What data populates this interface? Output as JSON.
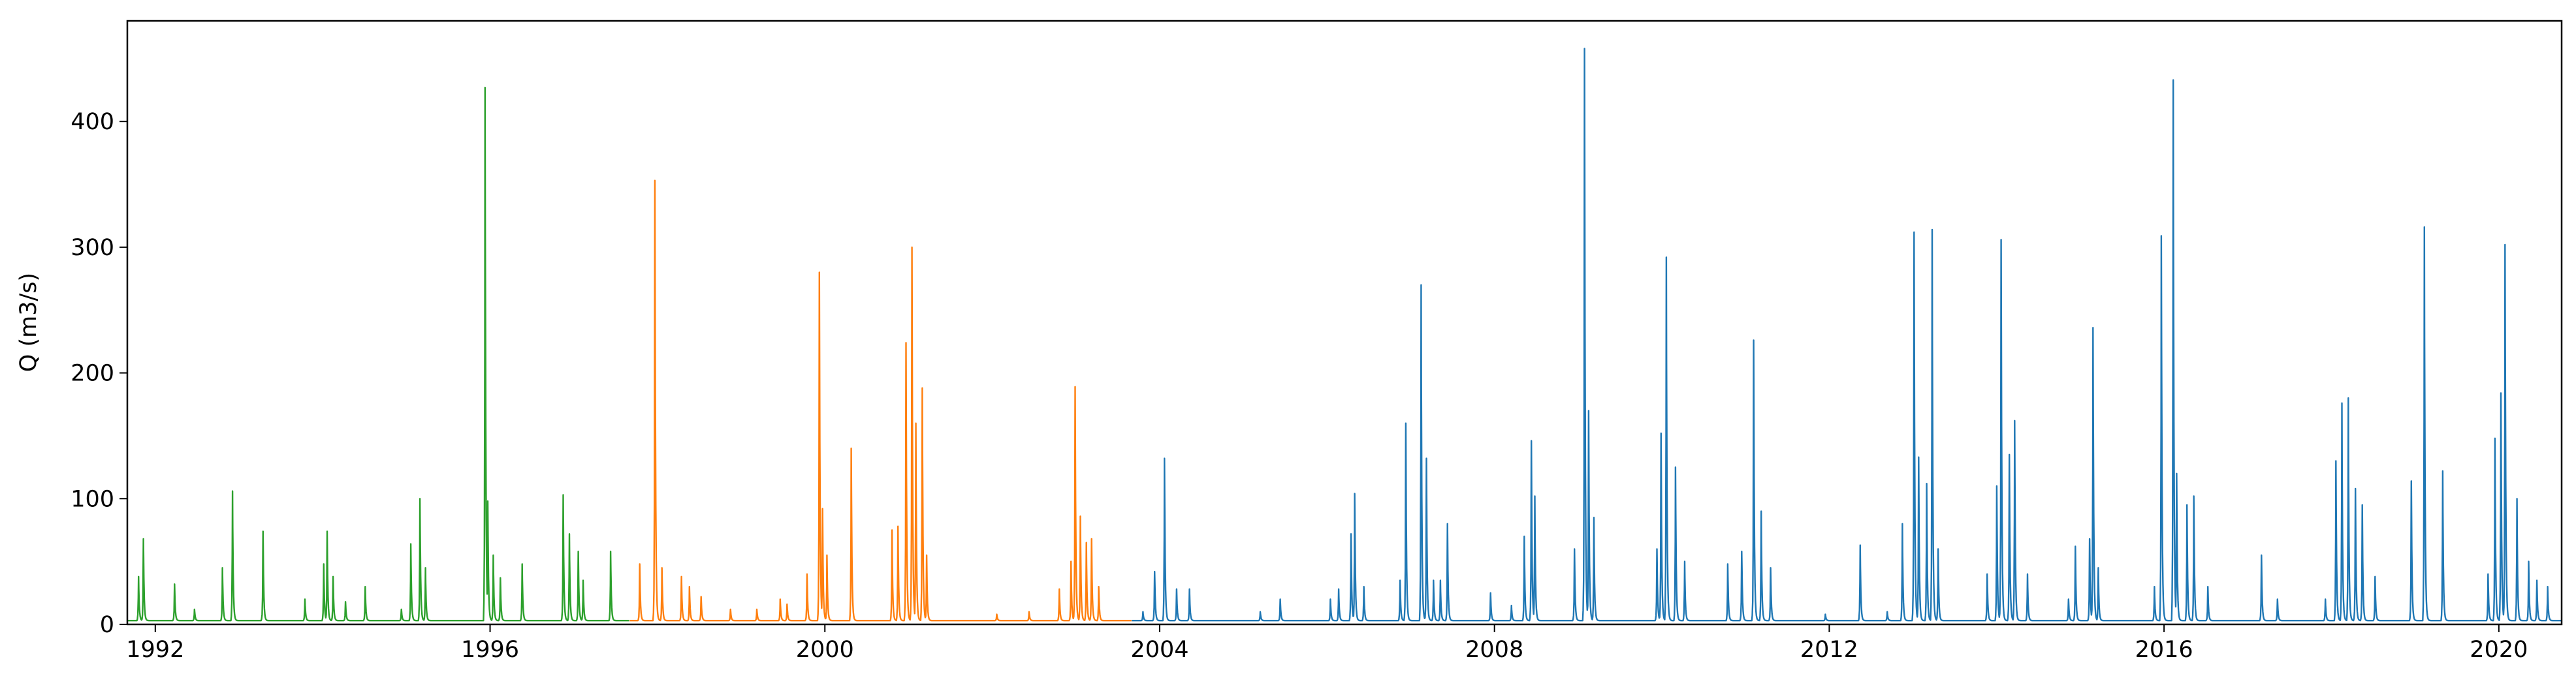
{
  "chart_data": {
    "type": "line",
    "title": "",
    "xlabel": "",
    "ylabel": "Q (m3/s)",
    "x_range": [
      "1991-09-01",
      "2020-10-01"
    ],
    "ylim": [
      0,
      480
    ],
    "x_ticks": [
      "1992",
      "1996",
      "2000",
      "2004",
      "2008",
      "2012",
      "2016",
      "2020"
    ],
    "y_ticks": [
      "0",
      "100",
      "200",
      "300",
      "400"
    ],
    "grid": false,
    "legend": "none",
    "series": [
      {
        "color": "#2ca02c",
        "period": [
          "1991-09-01",
          "1997-08-31"
        ],
        "base_flow": 3,
        "peaks": [
          [
            "1991-10-20",
            38
          ],
          [
            "1991-11-10",
            68
          ],
          [
            "1992-03-25",
            32
          ],
          [
            "1992-06-20",
            12
          ],
          [
            "1992-10-20",
            45
          ],
          [
            "1992-12-03",
            106
          ],
          [
            "1993-04-15",
            74
          ],
          [
            "1993-10-15",
            20
          ],
          [
            "1994-01-05",
            48
          ],
          [
            "1994-01-20",
            74
          ],
          [
            "1994-02-15",
            38
          ],
          [
            "1994-04-10",
            18
          ],
          [
            "1994-07-05",
            30
          ],
          [
            "1994-12-10",
            12
          ],
          [
            "1995-01-20",
            64
          ],
          [
            "1995-03-01",
            100
          ],
          [
            "1995-03-25",
            45
          ],
          [
            "1995-12-10",
            427
          ],
          [
            "1995-12-22",
            98
          ],
          [
            "1996-01-15",
            55
          ],
          [
            "1996-02-15",
            37
          ],
          [
            "1996-05-20",
            48
          ],
          [
            "1996-11-15",
            103
          ],
          [
            "1996-12-12",
            72
          ],
          [
            "1997-01-20",
            58
          ],
          [
            "1997-02-10",
            35
          ],
          [
            "1997-06-10",
            58
          ]
        ]
      },
      {
        "color": "#ff7f0e",
        "period": [
          "1997-09-01",
          "2003-08-31"
        ],
        "base_flow": 3,
        "peaks": [
          [
            "1997-10-15",
            48
          ],
          [
            "1997-12-20",
            353
          ],
          [
            "1998-01-20",
            45
          ],
          [
            "1998-04-15",
            38
          ],
          [
            "1998-05-20",
            30
          ],
          [
            "1998-07-10",
            22
          ],
          [
            "1998-11-15",
            12
          ],
          [
            "1999-03-10",
            12
          ],
          [
            "1999-06-20",
            20
          ],
          [
            "1999-07-20",
            16
          ],
          [
            "1999-10-15",
            40
          ],
          [
            "1999-12-08",
            280
          ],
          [
            "1999-12-22",
            92
          ],
          [
            "2000-01-10",
            55
          ],
          [
            "2000-04-25",
            140
          ],
          [
            "2000-10-20",
            75
          ],
          [
            "2000-11-15",
            78
          ],
          [
            "2000-12-20",
            224
          ],
          [
            "2001-01-15",
            300
          ],
          [
            "2001-02-01",
            160
          ],
          [
            "2001-03-01",
            188
          ],
          [
            "2001-03-20",
            55
          ],
          [
            "2002-01-20",
            8
          ],
          [
            "2002-06-10",
            10
          ],
          [
            "2002-10-20",
            28
          ],
          [
            "2002-12-10",
            50
          ],
          [
            "2002-12-28",
            189
          ],
          [
            "2003-01-20",
            86
          ],
          [
            "2003-02-15",
            65
          ],
          [
            "2003-03-10",
            68
          ],
          [
            "2003-04-10",
            30
          ]
        ]
      },
      {
        "color": "#1f77b4",
        "period": [
          "2003-09-01",
          "2020-10-01"
        ],
        "base_flow": 3,
        "peaks": [
          [
            "2003-10-20",
            10
          ],
          [
            "2003-12-10",
            42
          ],
          [
            "2004-01-22",
            132
          ],
          [
            "2004-03-15",
            28
          ],
          [
            "2004-05-10",
            28
          ],
          [
            "2005-03-15",
            10
          ],
          [
            "2005-06-10",
            20
          ],
          [
            "2006-01-15",
            20
          ],
          [
            "2006-02-20",
            28
          ],
          [
            "2006-04-15",
            72
          ],
          [
            "2006-05-01",
            104
          ],
          [
            "2006-06-10",
            30
          ],
          [
            "2006-11-15",
            35
          ],
          [
            "2006-12-10",
            160
          ],
          [
            "2007-02-15",
            270
          ],
          [
            "2007-03-10",
            132
          ],
          [
            "2007-04-10",
            35
          ],
          [
            "2007-05-10",
            35
          ],
          [
            "2007-06-10",
            80
          ],
          [
            "2007-12-15",
            25
          ],
          [
            "2008-03-15",
            15
          ],
          [
            "2008-05-10",
            70
          ],
          [
            "2008-06-10",
            146
          ],
          [
            "2008-06-25",
            102
          ],
          [
            "2008-12-15",
            60
          ],
          [
            "2009-01-28",
            458
          ],
          [
            "2009-02-15",
            170
          ],
          [
            "2009-03-10",
            85
          ],
          [
            "2009-12-10",
            60
          ],
          [
            "2009-12-28",
            152
          ],
          [
            "2010-01-20",
            292
          ],
          [
            "2010-03-01",
            125
          ],
          [
            "2010-04-10",
            50
          ],
          [
            "2010-10-15",
            48
          ],
          [
            "2010-12-15",
            58
          ],
          [
            "2011-02-05",
            226
          ],
          [
            "2011-03-10",
            90
          ],
          [
            "2011-04-20",
            45
          ],
          [
            "2011-12-15",
            8
          ],
          [
            "2012-05-15",
            63
          ],
          [
            "2012-09-10",
            10
          ],
          [
            "2012-11-15",
            80
          ],
          [
            "2013-01-05",
            312
          ],
          [
            "2013-01-25",
            133
          ],
          [
            "2013-03-01",
            112
          ],
          [
            "2013-03-25",
            314
          ],
          [
            "2013-04-20",
            60
          ],
          [
            "2013-11-20",
            40
          ],
          [
            "2014-01-01",
            110
          ],
          [
            "2014-01-20",
            306
          ],
          [
            "2014-02-25",
            135
          ],
          [
            "2014-03-20",
            162
          ],
          [
            "2014-05-15",
            40
          ],
          [
            "2014-11-10",
            20
          ],
          [
            "2014-12-10",
            62
          ],
          [
            "2015-02-10",
            68
          ],
          [
            "2015-02-25",
            236
          ],
          [
            "2015-03-20",
            45
          ],
          [
            "2015-11-20",
            30
          ],
          [
            "2015-12-20",
            309
          ],
          [
            "2016-02-10",
            433
          ],
          [
            "2016-02-25",
            120
          ],
          [
            "2016-04-10",
            95
          ],
          [
            "2016-05-10",
            102
          ],
          [
            "2016-07-10",
            30
          ],
          [
            "2017-03-01",
            55
          ],
          [
            "2017-05-10",
            20
          ],
          [
            "2017-12-05",
            20
          ],
          [
            "2018-01-20",
            130
          ],
          [
            "2018-02-15",
            176
          ],
          [
            "2018-03-15",
            180
          ],
          [
            "2018-04-15",
            108
          ],
          [
            "2018-05-15",
            95
          ],
          [
            "2018-07-10",
            38
          ],
          [
            "2018-12-15",
            114
          ],
          [
            "2019-02-10",
            316
          ],
          [
            "2019-05-01",
            122
          ],
          [
            "2019-11-15",
            40
          ],
          [
            "2019-12-15",
            148
          ],
          [
            "2020-01-10",
            184
          ],
          [
            "2020-01-28",
            302
          ],
          [
            "2020-03-20",
            100
          ],
          [
            "2020-05-10",
            50
          ],
          [
            "2020-06-15",
            35
          ],
          [
            "2020-08-01",
            30
          ]
        ]
      }
    ]
  }
}
